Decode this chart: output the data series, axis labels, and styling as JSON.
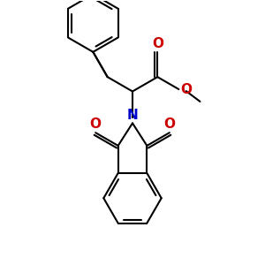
{
  "bg_color": "#ffffff",
  "bond_color": "#000000",
  "N_color": "#0000cc",
  "O_color": "#cc0000",
  "lw": 1.5,
  "fig_size": [
    3.0,
    3.0
  ],
  "dpi": 100,
  "xlim": [
    0,
    10
  ],
  "ylim": [
    0,
    10
  ]
}
